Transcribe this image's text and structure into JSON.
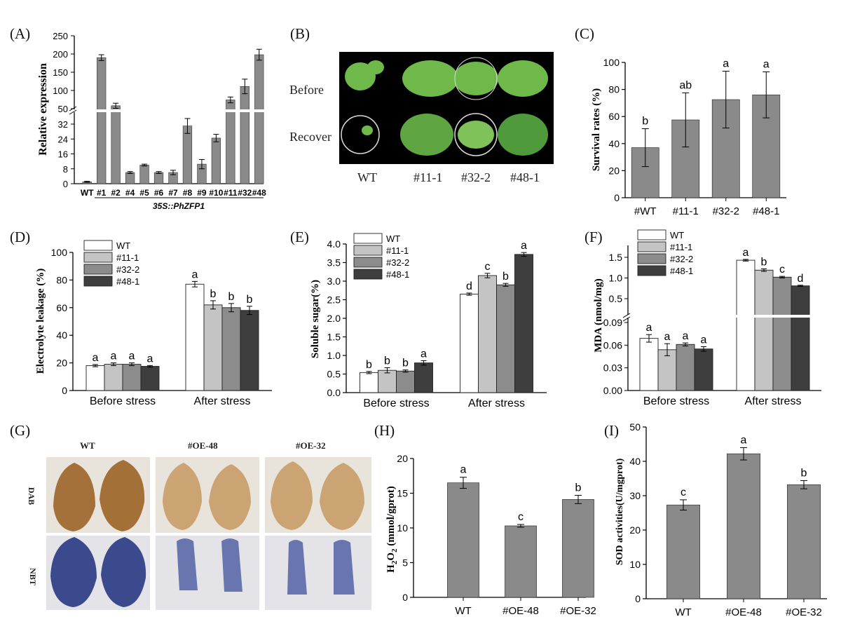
{
  "panels": {
    "A": "(A)",
    "B": "(B)",
    "C": "(C)",
    "D": "(D)",
    "E": "(E)",
    "F": "(F)",
    "G": "(G)",
    "H": "(H)",
    "I": "(I)"
  },
  "photo_b": {
    "row_labels": [
      "Before",
      "Recover"
    ],
    "col_labels": [
      "WT",
      "#11-1",
      "#32-2",
      "#48-1"
    ]
  },
  "photo_g": {
    "col_labels": [
      "WT",
      "#OE-48",
      "#OE-32"
    ],
    "row_labels": [
      "DAB",
      "NBT"
    ]
  },
  "colors": {
    "bar_gray": "#8a8a8a",
    "wt": "#ffffff",
    "s11": "#c4c4c4",
    "s32": "#8c8c8c",
    "s48": "#3e3e3e",
    "dab_brown": "#9b6a2e",
    "nbt_blue": "#3a4a8c",
    "photo_bg_b": "#000000"
  },
  "chart_data": [
    {
      "id": "A",
      "type": "bar",
      "ylabel": "Relative expression",
      "xgroup_label": "35S::PhZFP1",
      "broken_axis": true,
      "ylim_lower": [
        0,
        40
      ],
      "ylim_upper": [
        50,
        250
      ],
      "yticks_lower": [
        "0",
        "8",
        "16",
        "24",
        "32"
      ],
      "yticks_upper": [
        "50",
        "100",
        "150",
        "200",
        "250"
      ],
      "categories": [
        "WT",
        "#1",
        "#2",
        "#4",
        "#5",
        "#6",
        "#7",
        "#8",
        "#9",
        "#10",
        "#11",
        "#32",
        "#48"
      ],
      "values": [
        1,
        190,
        58,
        6,
        10,
        6,
        6,
        31,
        10.5,
        24.5,
        74,
        111,
        198
      ],
      "errors": [
        0.3,
        8,
        7,
        0.5,
        0.5,
        0.5,
        1.2,
        4,
        2.5,
        2,
        8,
        20,
        15
      ]
    },
    {
      "id": "C",
      "type": "bar",
      "ylabel": "Survival rates (%)",
      "ylim": [
        0,
        100
      ],
      "yticks": [
        "0",
        "20",
        "40",
        "60",
        "80",
        "100"
      ],
      "categories": [
        "#WT",
        "#11-1",
        "#32-2",
        "#48-1"
      ],
      "values": [
        37,
        57.5,
        72.5,
        76
      ],
      "errors": [
        14,
        20,
        21,
        17
      ],
      "letters": [
        "b",
        "ab",
        "a",
        "a"
      ]
    },
    {
      "id": "D",
      "type": "bar",
      "ylabel": "Electrolyte leakage (%)",
      "ylim": [
        0,
        100
      ],
      "yticks": [
        "0",
        "20",
        "40",
        "60",
        "80",
        "100"
      ],
      "categories": [
        "Before stress",
        "After stress"
      ],
      "series": [
        {
          "name": "WT",
          "values": [
            18,
            77
          ],
          "errors": [
            0.8,
            2
          ],
          "letters": [
            "a",
            "a"
          ]
        },
        {
          "name": "#11-1",
          "values": [
            19,
            62
          ],
          "errors": [
            1,
            3
          ],
          "letters": [
            "a",
            "b"
          ]
        },
        {
          "name": "#32-2",
          "values": [
            19,
            60
          ],
          "errors": [
            1,
            3
          ],
          "letters": [
            "a",
            "b"
          ]
        },
        {
          "name": "#48-1",
          "values": [
            17.5,
            58
          ],
          "errors": [
            0.6,
            3
          ],
          "letters": [
            "a",
            "b"
          ]
        }
      ]
    },
    {
      "id": "E",
      "type": "bar",
      "ylabel": "Soluble sugar(%)",
      "ylim": [
        0,
        4
      ],
      "yticks": [
        "0.0",
        "0.5",
        "1.0",
        "1.5",
        "2.0",
        "2.5",
        "3.0",
        "3.5",
        "4.0"
      ],
      "categories": [
        "Before stress",
        "After stress"
      ],
      "series": [
        {
          "name": "WT",
          "values": [
            0.54,
            2.65
          ],
          "errors": [
            0.03,
            0.03
          ],
          "letters": [
            "b",
            "d"
          ]
        },
        {
          "name": "#11-1",
          "values": [
            0.6,
            3.15
          ],
          "errors": [
            0.07,
            0.06
          ],
          "letters": [
            "b",
            "c"
          ]
        },
        {
          "name": "#32-2",
          "values": [
            0.58,
            2.9
          ],
          "errors": [
            0.03,
            0.04
          ],
          "letters": [
            "b",
            "b"
          ]
        },
        {
          "name": "#48-1",
          "values": [
            0.8,
            3.72
          ],
          "errors": [
            0.06,
            0.05
          ],
          "letters": [
            "a",
            "a"
          ]
        }
      ]
    },
    {
      "id": "F",
      "type": "bar",
      "ylabel": "MDA (nmol/mg)",
      "broken_axis": true,
      "ylim_lower": [
        0,
        0.09
      ],
      "ylim_upper": [
        0.09,
        1.6
      ],
      "yticks_lower": [
        "0.00",
        "0.03",
        "0.06",
        "0.09"
      ],
      "yticks_upper": [
        "0.5",
        "1.0",
        "1.5"
      ],
      "categories": [
        "Before stress",
        "After stress"
      ],
      "series": [
        {
          "name": "WT",
          "values": [
            0.069,
            1.43
          ],
          "errors": [
            0.005,
            0.02
          ],
          "letters": [
            "a",
            "a"
          ]
        },
        {
          "name": "#11-1",
          "values": [
            0.054,
            1.19
          ],
          "errors": [
            0.008,
            0.03
          ],
          "letters": [
            "a",
            "b"
          ]
        },
        {
          "name": "#32-2",
          "values": [
            0.061,
            1.02
          ],
          "errors": [
            0.002,
            0.02
          ],
          "letters": [
            "a",
            "c"
          ]
        },
        {
          "name": "#48-1",
          "values": [
            0.055,
            0.81
          ],
          "errors": [
            0.003,
            0.015
          ],
          "letters": [
            "a",
            "d"
          ]
        }
      ]
    },
    {
      "id": "H",
      "type": "bar",
      "ylabel_parts": [
        "H",
        "2",
        "O",
        "2",
        " (mmol/gprot)"
      ],
      "ylim": [
        0,
        20
      ],
      "yticks": [
        "0",
        "5",
        "10",
        "15",
        "20"
      ],
      "categories": [
        "WT",
        "#OE-48",
        "#OE-32"
      ],
      "values": [
        16.5,
        10.3,
        14.1
      ],
      "errors": [
        0.8,
        0.2,
        0.6
      ],
      "letters": [
        "a",
        "c",
        "b"
      ]
    },
    {
      "id": "I",
      "type": "bar",
      "ylabel": "SOD activities(U/mgprot)",
      "ylim": [
        0,
        50
      ],
      "yticks": [
        "0",
        "10",
        "20",
        "30",
        "40",
        "50"
      ],
      "categories": [
        "WT",
        "#OE-48",
        "#OE-32"
      ],
      "values": [
        27.3,
        42.2,
        33.2
      ],
      "errors": [
        1.5,
        1.8,
        1.2
      ],
      "letters": [
        "c",
        "a",
        "b"
      ]
    }
  ]
}
